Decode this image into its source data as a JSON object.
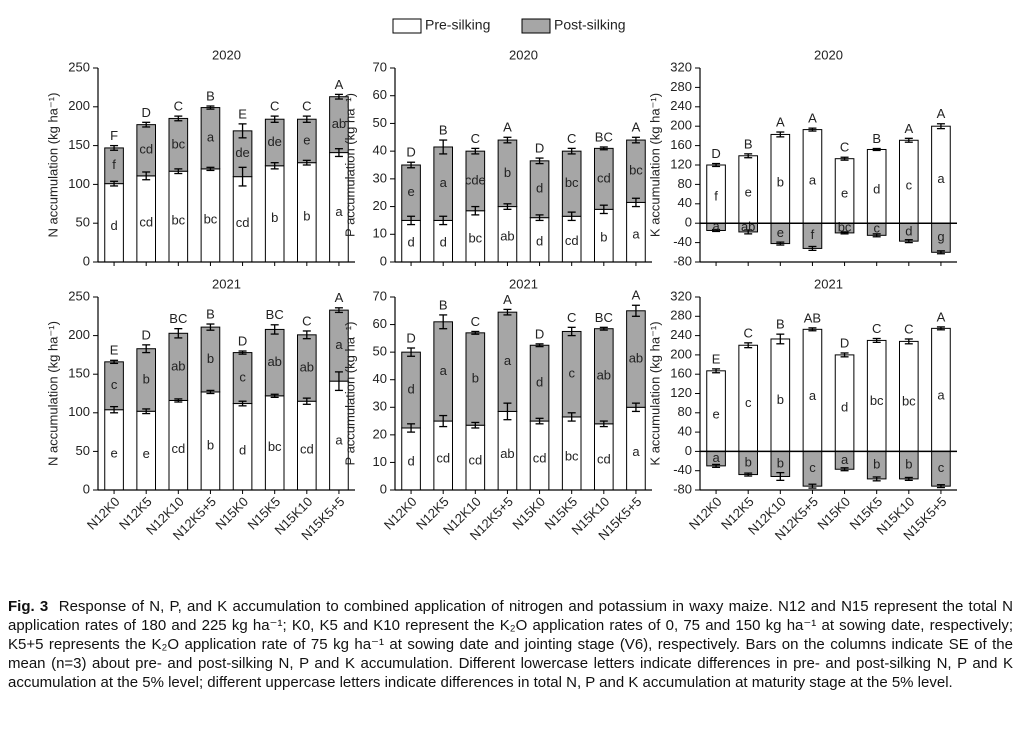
{
  "chart_data": [
    {
      "type": "stacked_bar",
      "title": "2020",
      "y_label": "N accumulation (kg ha⁻¹)",
      "ylim": [
        0,
        250
      ],
      "yticks": [
        0,
        50,
        100,
        150,
        200,
        250
      ],
      "series": [
        {
          "name": "Pre-silking",
          "color": "#ffffff",
          "values": [
            101,
            111,
            117,
            120,
            110,
            124,
            128,
            141
          ],
          "errors": [
            3,
            5,
            3,
            2,
            12,
            4,
            3,
            5
          ],
          "letters": [
            "d",
            "cd",
            "bc",
            "bc",
            "cd",
            "b",
            "b",
            "a"
          ]
        },
        {
          "name": "Post-silking",
          "color": "#a6a6a6",
          "values": [
            46,
            66,
            68,
            79,
            59,
            60,
            56,
            72
          ],
          "errors": [
            3,
            3,
            3,
            2,
            9,
            4,
            4,
            3
          ],
          "letters": [
            "f",
            "cd",
            "bc",
            "a",
            "de",
            "de",
            "e",
            "ab"
          ]
        }
      ],
      "total_letters": [
        "F",
        "D",
        "C",
        "B",
        "E",
        "C",
        "C",
        "A"
      ]
    },
    {
      "type": "stacked_bar",
      "title": "2020",
      "y_label": "P accumulation (kg ha⁻¹)",
      "ylim": [
        0,
        70
      ],
      "yticks": [
        0,
        10,
        20,
        30,
        40,
        50,
        60,
        70
      ],
      "series": [
        {
          "name": "Pre-silking",
          "color": "#ffffff",
          "values": [
            15,
            15,
            18.5,
            20,
            16,
            16.5,
            19,
            21.5
          ],
          "errors": [
            1.5,
            1.5,
            1.5,
            1,
            1,
            1.5,
            1.5,
            1.5
          ],
          "letters": [
            "d",
            "d",
            "bc",
            "ab",
            "d",
            "cd",
            "b",
            "a"
          ]
        },
        {
          "name": "Post-silking",
          "color": "#a6a6a6",
          "values": [
            20,
            26.5,
            21.5,
            24,
            20.5,
            23.5,
            22,
            22.5
          ],
          "errors": [
            1,
            2.5,
            1,
            1,
            1,
            1,
            0.5,
            1
          ],
          "letters": [
            "e",
            "a",
            "cde",
            "b",
            "d",
            "bc",
            "cd",
            "bc"
          ]
        }
      ],
      "total_letters": [
        "D",
        "B",
        "C",
        "A",
        "D",
        "C",
        "BC",
        "A"
      ]
    },
    {
      "type": "stacked_bar",
      "title": "2020",
      "y_label": "K accumulation (kg ha⁻¹)",
      "ylim": [
        -80,
        320
      ],
      "yticks": [
        -80,
        -40,
        0,
        40,
        80,
        120,
        160,
        200,
        240,
        280,
        320
      ],
      "series": [
        {
          "name": "Pre-silking",
          "color": "#ffffff",
          "values": [
            120,
            139,
            183,
            193,
            133,
            152,
            171,
            200
          ],
          "errors": [
            3,
            4,
            5,
            3,
            3,
            2,
            4,
            5
          ],
          "letters": [
            "f",
            "e",
            "b",
            "a",
            "e",
            "d",
            "c",
            "a"
          ]
        },
        {
          "name": "Post-silking",
          "color": "#a6a6a6",
          "values": [
            -15,
            -18,
            -42,
            -52,
            -20,
            -25,
            -37,
            -60
          ],
          "errors": [
            2,
            4,
            3,
            4,
            2,
            3,
            3,
            3
          ],
          "letters": [
            "a",
            "ab",
            "e",
            "f",
            "bc",
            "c",
            "d",
            "g"
          ]
        }
      ],
      "total_letters": [
        "D",
        "B",
        "A",
        "A",
        "C",
        "B",
        "A",
        "A"
      ]
    },
    {
      "type": "stacked_bar",
      "title": "2021",
      "y_label": "N accumulation (kg ha⁻¹)",
      "ylim": [
        0,
        250
      ],
      "yticks": [
        0,
        50,
        100,
        150,
        200,
        250
      ],
      "categories": [
        "N12K0",
        "N12K5",
        "N12K10",
        "N12K5+5",
        "N15K0",
        "N15K5",
        "N15K10",
        "N15K5+5"
      ],
      "series": [
        {
          "name": "Pre-silking",
          "color": "#ffffff",
          "values": [
            104,
            102,
            116,
            127,
            112,
            122,
            115,
            141
          ],
          "errors": [
            4,
            3,
            2,
            2,
            3,
            2,
            4,
            12
          ],
          "letters": [
            "e",
            "e",
            "cd",
            "b",
            "d",
            "bc",
            "cd",
            "a"
          ]
        },
        {
          "name": "Post-silking",
          "color": "#a6a6a6",
          "values": [
            62,
            81,
            87,
            84,
            66,
            86,
            86,
            92
          ],
          "errors": [
            2,
            5,
            6,
            4,
            2,
            6,
            5,
            3
          ],
          "letters": [
            "c",
            "b",
            "ab",
            "b",
            "c",
            "ab",
            "ab",
            "a"
          ]
        }
      ],
      "total_letters": [
        "E",
        "D",
        "BC",
        "B",
        "D",
        "BC",
        "C",
        "A"
      ]
    },
    {
      "type": "stacked_bar",
      "title": "2021",
      "y_label": "P accumulation (kg ha⁻¹)",
      "ylim": [
        0,
        70
      ],
      "yticks": [
        0,
        10,
        20,
        30,
        40,
        50,
        60,
        70
      ],
      "categories": [
        "N12K0",
        "N12K5",
        "N12K10",
        "N12K5+5",
        "N15K0",
        "N15K5",
        "N15K10",
        "N15K5+5"
      ],
      "series": [
        {
          "name": "Pre-silking",
          "color": "#ffffff",
          "values": [
            22.5,
            25,
            23.5,
            28.5,
            25,
            26.5,
            24,
            30
          ],
          "errors": [
            1.5,
            2,
            1,
            3,
            1,
            1.5,
            1,
            1.5
          ],
          "letters": [
            "d",
            "cd",
            "cd",
            "ab",
            "cd",
            "bc",
            "cd",
            "a"
          ]
        },
        {
          "name": "Post-silking",
          "color": "#a6a6a6",
          "values": [
            27.5,
            36,
            33.5,
            36,
            27.5,
            31,
            34.5,
            35
          ],
          "errors": [
            1.5,
            2.5,
            0.5,
            1,
            0.5,
            1.5,
            0.5,
            2
          ],
          "letters": [
            "d",
            "a",
            "b",
            "a",
            "d",
            "c",
            "ab",
            "ab"
          ]
        }
      ],
      "total_letters": [
        "D",
        "B",
        "C",
        "A",
        "D",
        "C",
        "BC",
        "A"
      ]
    },
    {
      "type": "stacked_bar",
      "title": "2021",
      "y_label": "K accumulation (kg ha⁻¹)",
      "ylim": [
        -80,
        320
      ],
      "yticks": [
        -80,
        -40,
        0,
        40,
        80,
        120,
        160,
        200,
        240,
        280,
        320
      ],
      "categories": [
        "N12K0",
        "N12K5",
        "N12K10",
        "N12K5+5",
        "N15K0",
        "N15K5",
        "N15K10",
        "N15K5+5"
      ],
      "series": [
        {
          "name": "Pre-silking",
          "color": "#ffffff",
          "values": [
            167,
            220,
            233,
            253,
            200,
            230,
            228,
            255
          ],
          "errors": [
            4,
            5,
            10,
            3,
            4,
            4,
            5,
            3
          ],
          "letters": [
            "e",
            "c",
            "b",
            "a",
            "d",
            "bc",
            "bc",
            "a"
          ]
        },
        {
          "name": "Post-silking",
          "color": "#a6a6a6",
          "values": [
            -30,
            -48,
            -52,
            -72,
            -37,
            -57,
            -57,
            -72
          ],
          "errors": [
            3,
            3,
            8,
            4,
            3,
            4,
            3,
            3
          ],
          "letters": [
            "a",
            "b",
            "b",
            "c",
            "a",
            "b",
            "b",
            "c"
          ]
        }
      ],
      "total_letters": [
        "E",
        "C",
        "B",
        "AB",
        "D",
        "C",
        "C",
        "A"
      ]
    }
  ],
  "caption": {
    "label": "Fig. 3",
    "text": "Response of N, P, and K accumulation to combined application of nitrogen and potassium in waxy maize.  N12 and N15 represent the total N application rates of 180 and 225 kg ha⁻¹; K0, K5 and K10 represent the K₂O application rates of 0, 75 and 150 kg ha⁻¹ at sowing date, respectively; K5+5 represents the K₂O application rate of 75 kg ha⁻¹ at sowing date and jointing stage (V6), respectively.  Bars on the columns indicate SE of the mean (n=3) about pre- and post-silking N, P and K accumulation. Different lowercase letters indicate differences in pre- and post-silking N, P and K accumulation at the 5% level; different uppercase letters indicate differences in total N, P and K accumulation at maturity stage at the 5% level."
  }
}
